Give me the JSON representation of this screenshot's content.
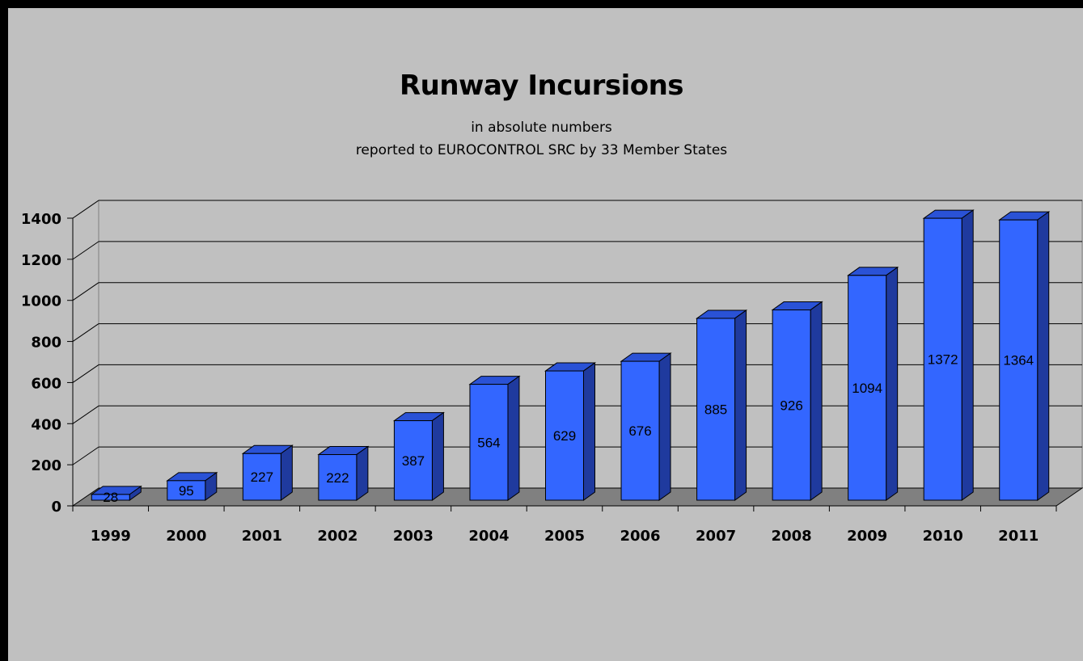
{
  "chart_data": {
    "type": "bar",
    "title": "Runway Incursions",
    "subtitle": [
      "in absolute numbers",
      "reported to EUROCONTROL SRC by 33 Member States"
    ],
    "categories": [
      "1999",
      "2000",
      "2001",
      "2002",
      "2003",
      "2004",
      "2005",
      "2006",
      "2007",
      "2008",
      "2009",
      "2010",
      "2011"
    ],
    "values": [
      28,
      95,
      227,
      222,
      387,
      564,
      629,
      676,
      885,
      926,
      1094,
      1372,
      1364
    ],
    "xlabel": "",
    "ylabel": "",
    "ylim": [
      0,
      1400
    ],
    "yticks": [
      0,
      200,
      400,
      600,
      800,
      1000,
      1200,
      1400
    ],
    "grid": true,
    "legend": "none",
    "style": "3d-column",
    "colors": {
      "bar_front": "#3366ff",
      "bar_top": "#2a52d6",
      "bar_side": "#1f3a9e",
      "floor": "#808080",
      "background": "#c0c0c0",
      "frame": "#000000"
    }
  }
}
